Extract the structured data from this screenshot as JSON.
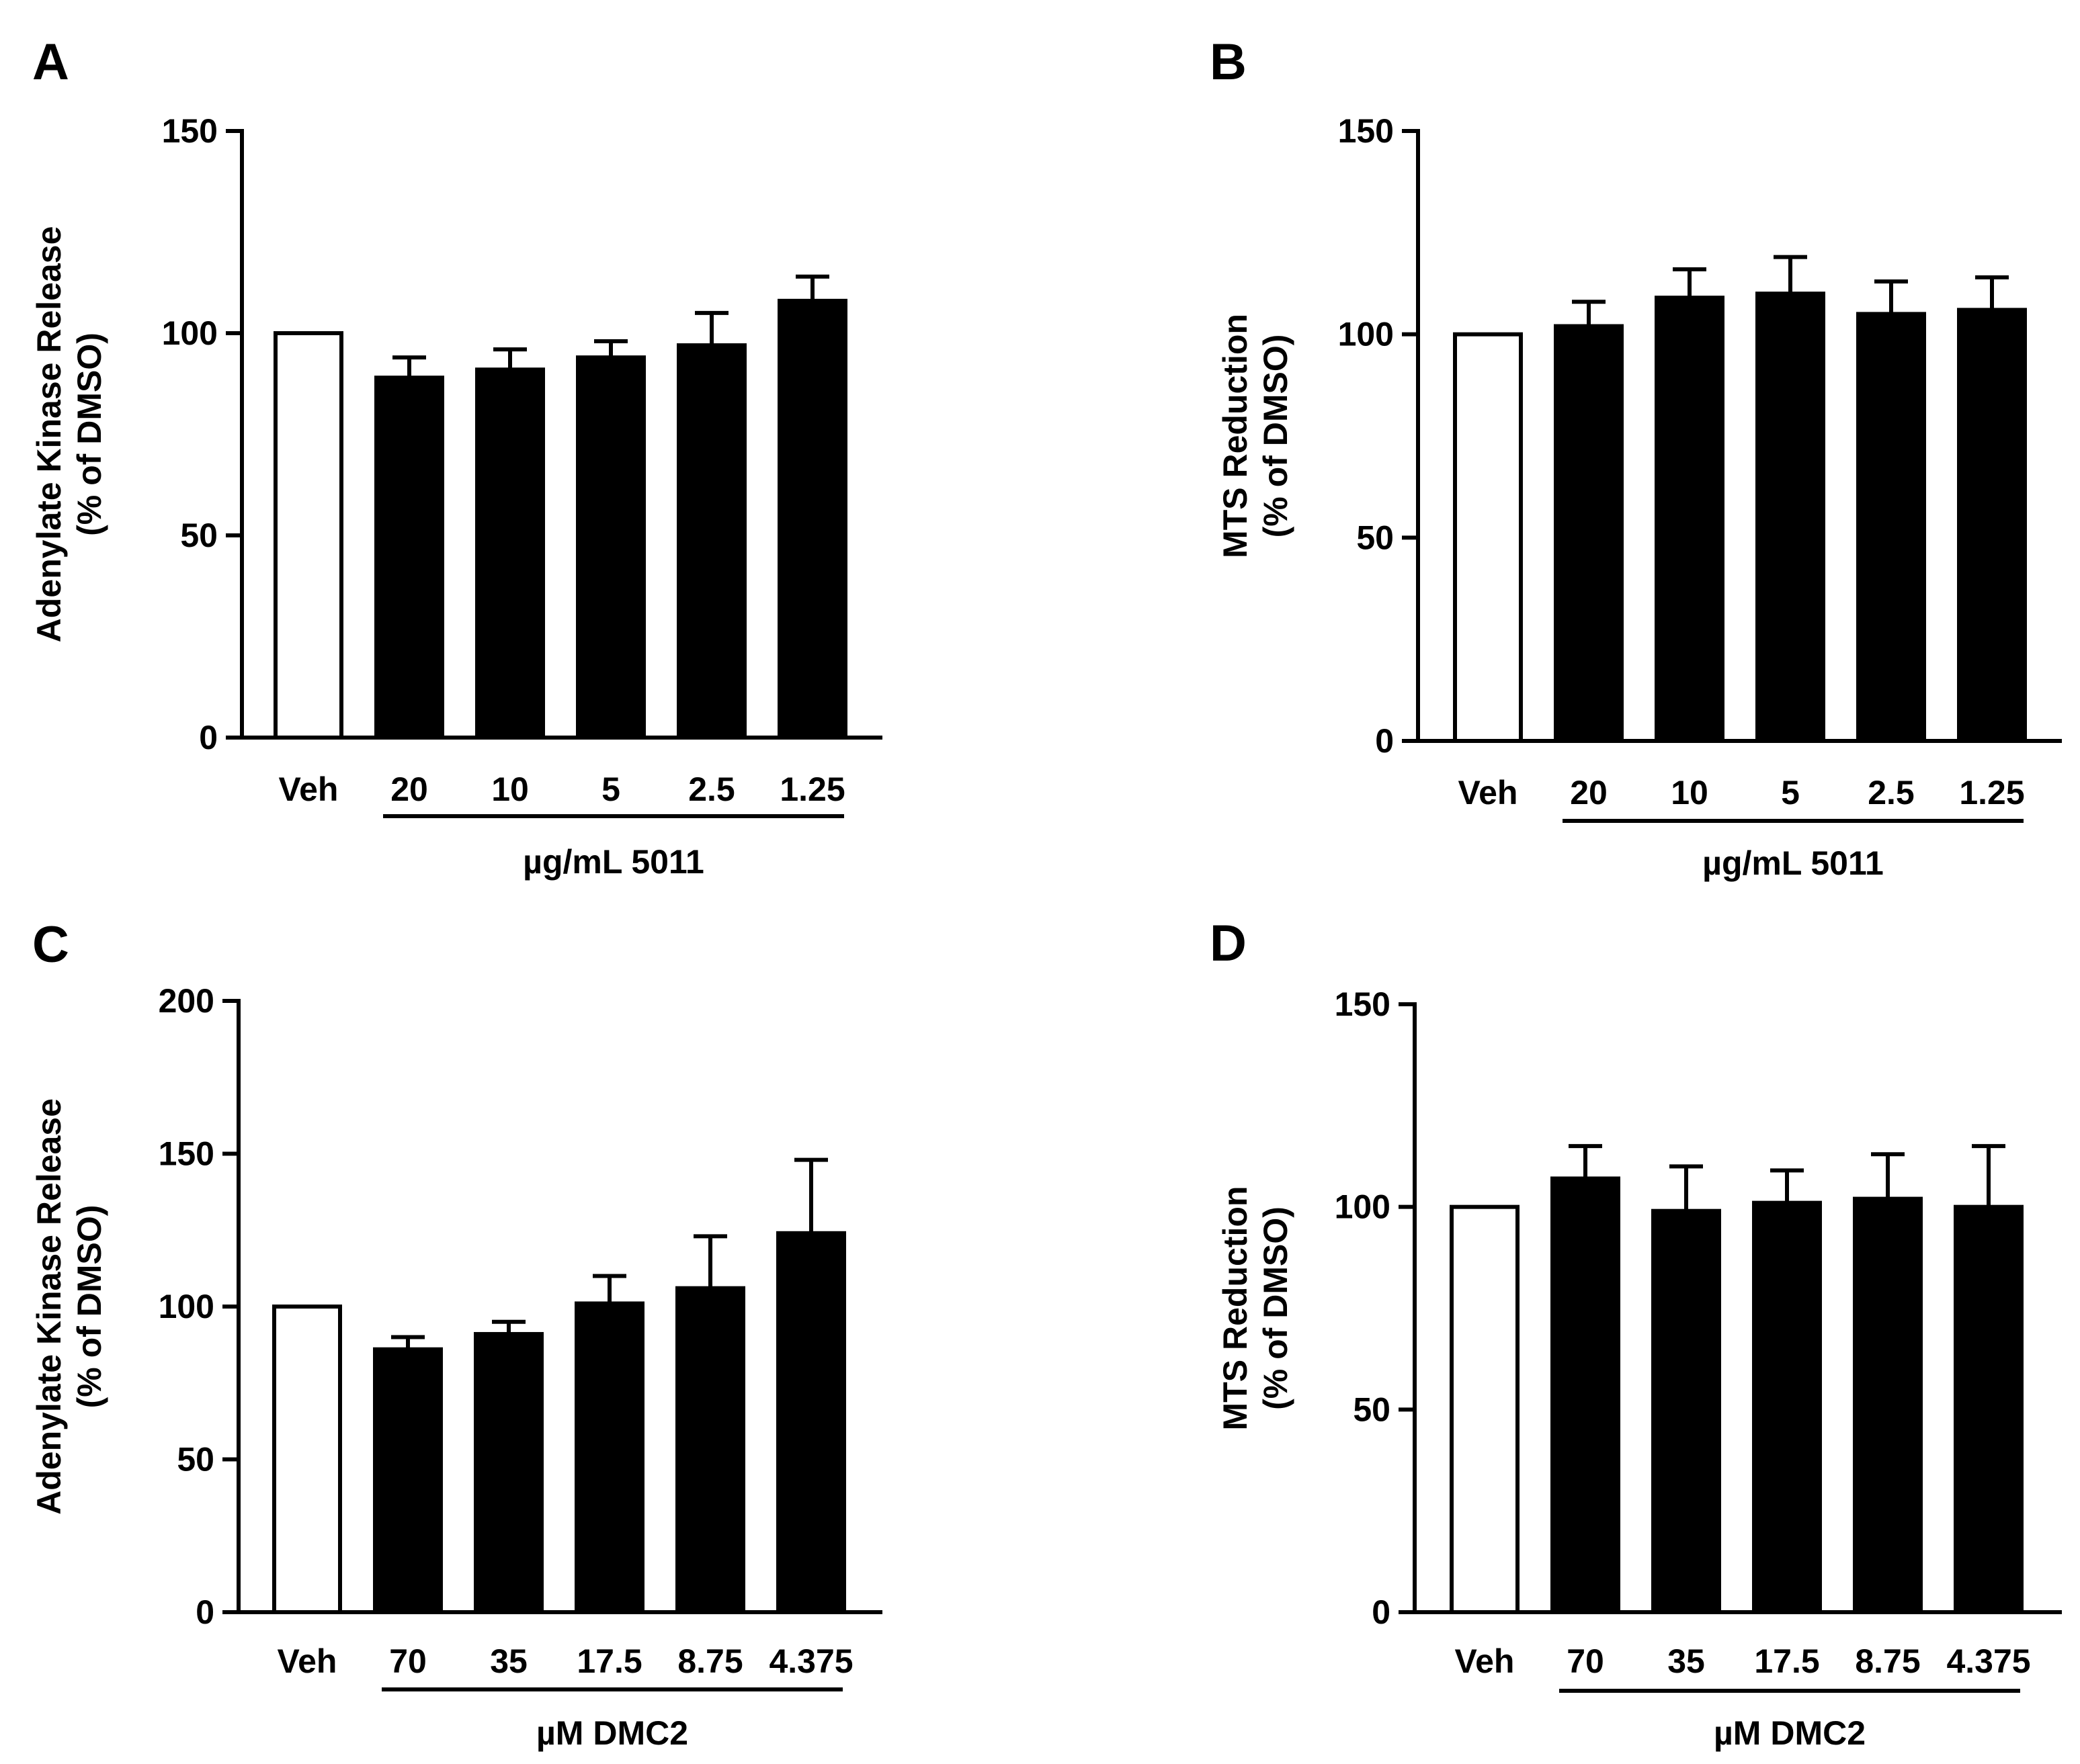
{
  "chart_data": [
    {
      "panel": "A",
      "type": "bar",
      "ylabel": "Adenylate Kinase Release",
      "ylabel2": "(% of DMSO)",
      "ylim": [
        0,
        150
      ],
      "yticks": [
        0,
        50,
        100,
        150
      ],
      "categories": [
        "Veh",
        "20",
        "10",
        "5",
        "2.5",
        "1.25"
      ],
      "values": [
        100,
        89,
        91,
        94,
        97,
        108
      ],
      "errors": [
        0,
        5,
        5,
        4,
        8,
        6
      ],
      "group_label": "µg/mL 5011"
    },
    {
      "panel": "B",
      "type": "bar",
      "ylabel": "MTS Reduction",
      "ylabel2": "(% of DMSO)",
      "ylim": [
        0,
        150
      ],
      "yticks": [
        0,
        50,
        100,
        150
      ],
      "categories": [
        "Veh",
        "20",
        "10",
        "5",
        "2.5",
        "1.25"
      ],
      "values": [
        100,
        102,
        109,
        110,
        105,
        106
      ],
      "errors": [
        0,
        6,
        7,
        9,
        8,
        8
      ],
      "group_label": "µg/mL 5011"
    },
    {
      "panel": "C",
      "type": "bar",
      "ylabel": "Adenylate Kinase Release",
      "ylabel2": "(% of DMSO)",
      "ylim": [
        0,
        200
      ],
      "yticks": [
        0,
        50,
        100,
        150,
        200
      ],
      "categories": [
        "Veh",
        "70",
        "35",
        "17.5",
        "8.75",
        "4.375"
      ],
      "values": [
        100,
        86,
        91,
        101,
        106,
        124
      ],
      "errors": [
        0,
        4,
        4,
        9,
        17,
        24
      ],
      "group_label": "µM DMC2"
    },
    {
      "panel": "D",
      "type": "bar",
      "ylabel": "MTS Reduction",
      "ylabel2": "(% of DMSO)",
      "ylim": [
        0,
        150
      ],
      "yticks": [
        0,
        50,
        100,
        150
      ],
      "categories": [
        "Veh",
        "70",
        "35",
        "17.5",
        "8.75",
        "4.375"
      ],
      "values": [
        100,
        107,
        99,
        101,
        102,
        100
      ],
      "errors": [
        0,
        8,
        11,
        8,
        11,
        15
      ],
      "group_label": "µM DMC2"
    }
  ],
  "colors": {
    "vehicle_fill": "#ffffff",
    "treatment_fill": "#000000",
    "stroke": "#000000"
  }
}
